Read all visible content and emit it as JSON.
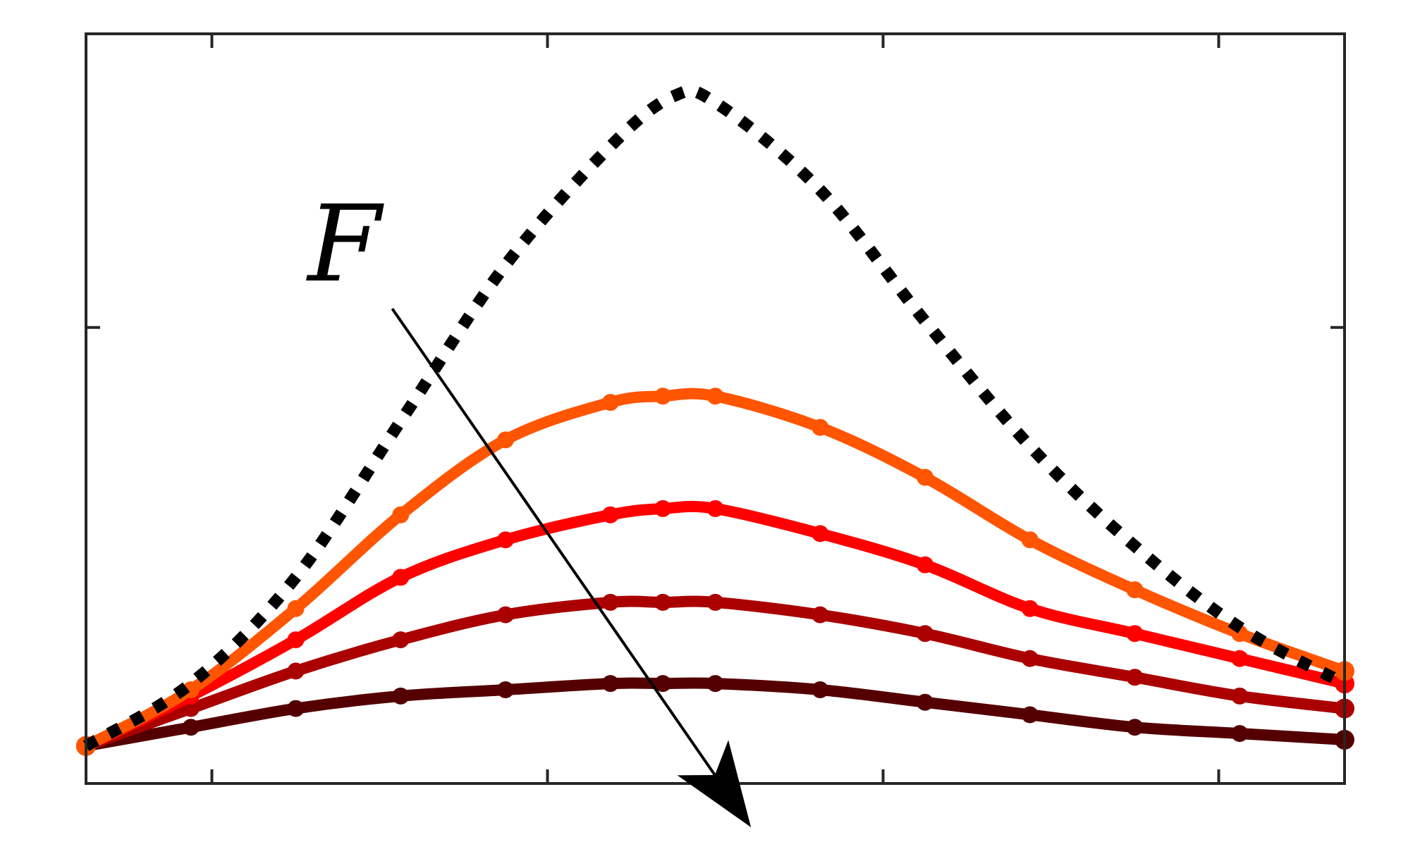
{
  "chart_data": {
    "type": "line",
    "title": "",
    "xlabel": "",
    "ylabel": "",
    "xlim": [
      0,
      6
    ],
    "ylim": [
      0,
      1.2
    ],
    "grid": false,
    "legend": "none",
    "tick_labels_shown": false,
    "x_ticks": [
      0.6,
      2.2,
      3.8,
      5.4
    ],
    "y_ticks": [
      0.73
    ],
    "annotation": {
      "text": "F",
      "arrow_from": [
        1.46,
        0.76
      ],
      "arrow_to": [
        3.17,
        -0.07
      ]
    },
    "series": [
      {
        "style": "dotted",
        "color": "#000000",
        "x": [
          0.0,
          0.5,
          1.0,
          1.5,
          2.0,
          2.5,
          2.8,
          3.0,
          3.5,
          4.0,
          4.5,
          5.0,
          5.5,
          6.0
        ],
        "y": [
          0.06,
          0.16,
          0.33,
          0.58,
          0.83,
          1.02,
          1.1,
          1.09,
          0.95,
          0.74,
          0.54,
          0.38,
          0.25,
          0.16
        ]
      },
      {
        "style": "line-markers",
        "color": "#ff5500",
        "x": [
          0.0,
          0.5,
          1.0,
          1.5,
          2.0,
          2.5,
          2.75,
          3.0,
          3.5,
          4.0,
          4.5,
          5.0,
          5.5,
          6.0
        ],
        "y": [
          0.06,
          0.15,
          0.28,
          0.43,
          0.55,
          0.61,
          0.62,
          0.62,
          0.57,
          0.49,
          0.39,
          0.31,
          0.24,
          0.18
        ]
      },
      {
        "style": "line-markers",
        "color": "#ff0000",
        "x": [
          0.0,
          0.5,
          1.0,
          1.5,
          2.0,
          2.5,
          2.75,
          3.0,
          3.5,
          4.0,
          4.5,
          5.0,
          5.5,
          6.0
        ],
        "y": [
          0.06,
          0.14,
          0.23,
          0.33,
          0.39,
          0.43,
          0.44,
          0.44,
          0.4,
          0.35,
          0.28,
          0.24,
          0.2,
          0.16
        ]
      },
      {
        "style": "line-markers",
        "color": "#aa0000",
        "x": [
          0.0,
          0.5,
          1.0,
          1.5,
          2.0,
          2.5,
          2.75,
          3.0,
          3.5,
          4.0,
          4.5,
          5.0,
          5.5,
          6.0
        ],
        "y": [
          0.06,
          0.12,
          0.18,
          0.23,
          0.27,
          0.29,
          0.29,
          0.29,
          0.27,
          0.24,
          0.2,
          0.17,
          0.14,
          0.12
        ]
      },
      {
        "style": "line-markers",
        "color": "#550000",
        "x": [
          0.0,
          0.5,
          1.0,
          1.5,
          2.0,
          2.5,
          2.75,
          3.0,
          3.5,
          4.0,
          4.5,
          5.0,
          5.5,
          6.0
        ],
        "y": [
          0.06,
          0.09,
          0.12,
          0.14,
          0.15,
          0.16,
          0.16,
          0.16,
          0.15,
          0.13,
          0.11,
          0.09,
          0.08,
          0.07
        ]
      }
    ]
  }
}
